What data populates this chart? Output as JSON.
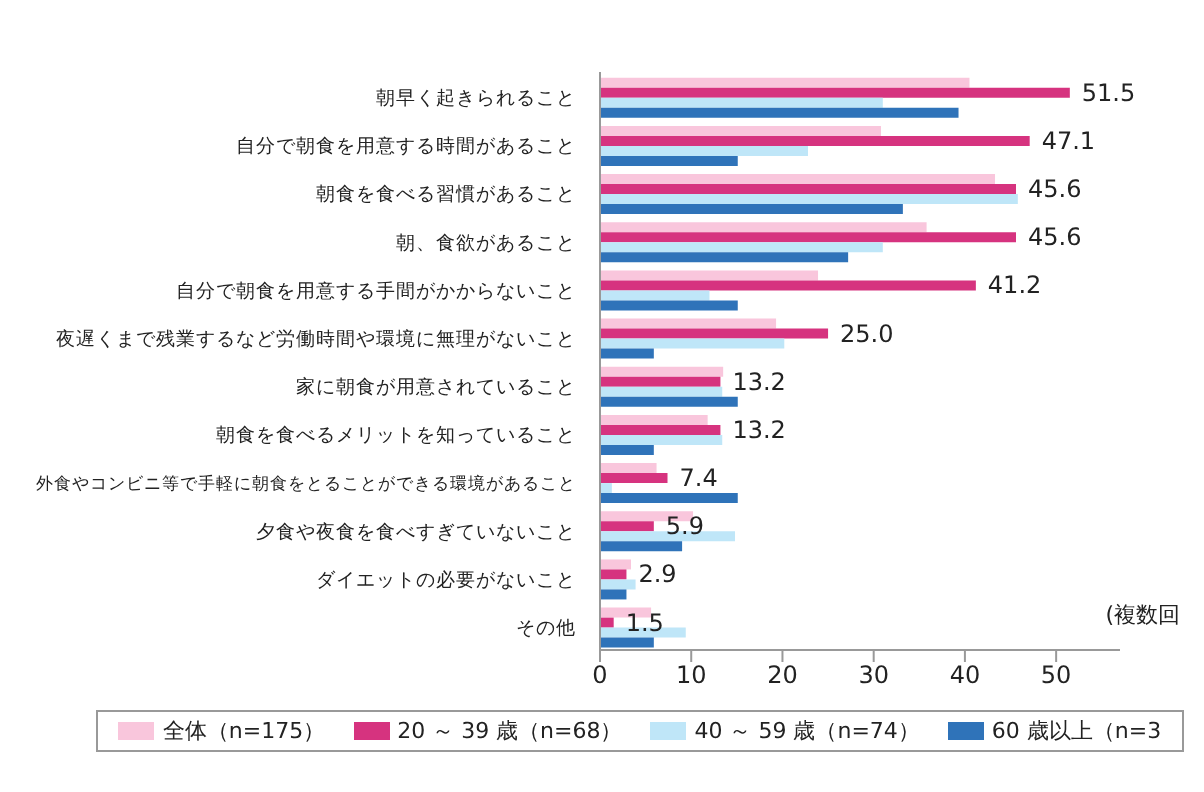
{
  "chart_data": {
    "type": "bar",
    "orientation": "horizontal",
    "categories": [
      "朝早く起きられること",
      "自分で朝食を用意する時間があること",
      "朝食を食べる習慣があること",
      "朝、食欲があること",
      "自分で朝食を用意する手間がかからないこと",
      "夜遅くまで残業するなど労働時間や環境に無理がないこと",
      "家に朝食が用意されていること",
      "朝食を食べるメリットを知っていること",
      "外食やコンビニ等で手軽に朝食をとることができる環境があること",
      "夕食や夜食を食べすぎていないこと",
      "ダイエットの必要がないこと",
      "その他"
    ],
    "series": [
      {
        "name": "全体（n=175）",
        "color": "#f9c6dc",
        "values": [
          40.5,
          30.8,
          43.3,
          35.8,
          23.9,
          19.3,
          13.5,
          11.8,
          6.2,
          10.2,
          3.4,
          5.6
        ]
      },
      {
        "name": "20 ～ 39 歳（n=68）",
        "color": "#d6337f",
        "values": [
          51.5,
          47.1,
          45.6,
          45.6,
          41.2,
          25.0,
          13.2,
          13.2,
          7.4,
          5.9,
          2.9,
          1.5
        ],
        "value_labels": [
          "51.5",
          "47.1",
          "45.6",
          "45.6",
          "41.2",
          "25.0",
          "13.2",
          "13.2",
          "7.4",
          "5.9",
          "2.9",
          "1.5"
        ]
      },
      {
        "name": "40 ～ 59 歳（n=74）",
        "color": "#bfe6f8",
        "values": [
          31.0,
          22.8,
          45.8,
          31.0,
          12.0,
          20.2,
          13.4,
          13.4,
          1.3,
          14.8,
          3.9,
          9.4
        ]
      },
      {
        "name": "60 歳以上（n=3",
        "color": "#2f73b9",
        "values": [
          39.3,
          15.1,
          33.2,
          27.2,
          15.1,
          5.9,
          15.1,
          5.9,
          15.1,
          9.0,
          2.9,
          5.9
        ]
      }
    ],
    "xlim": [
      0,
      57
    ],
    "xticks": [
      0,
      10,
      20,
      30,
      40,
      50
    ],
    "legend": "bottom",
    "annotations": [
      "(複数回"
    ]
  }
}
